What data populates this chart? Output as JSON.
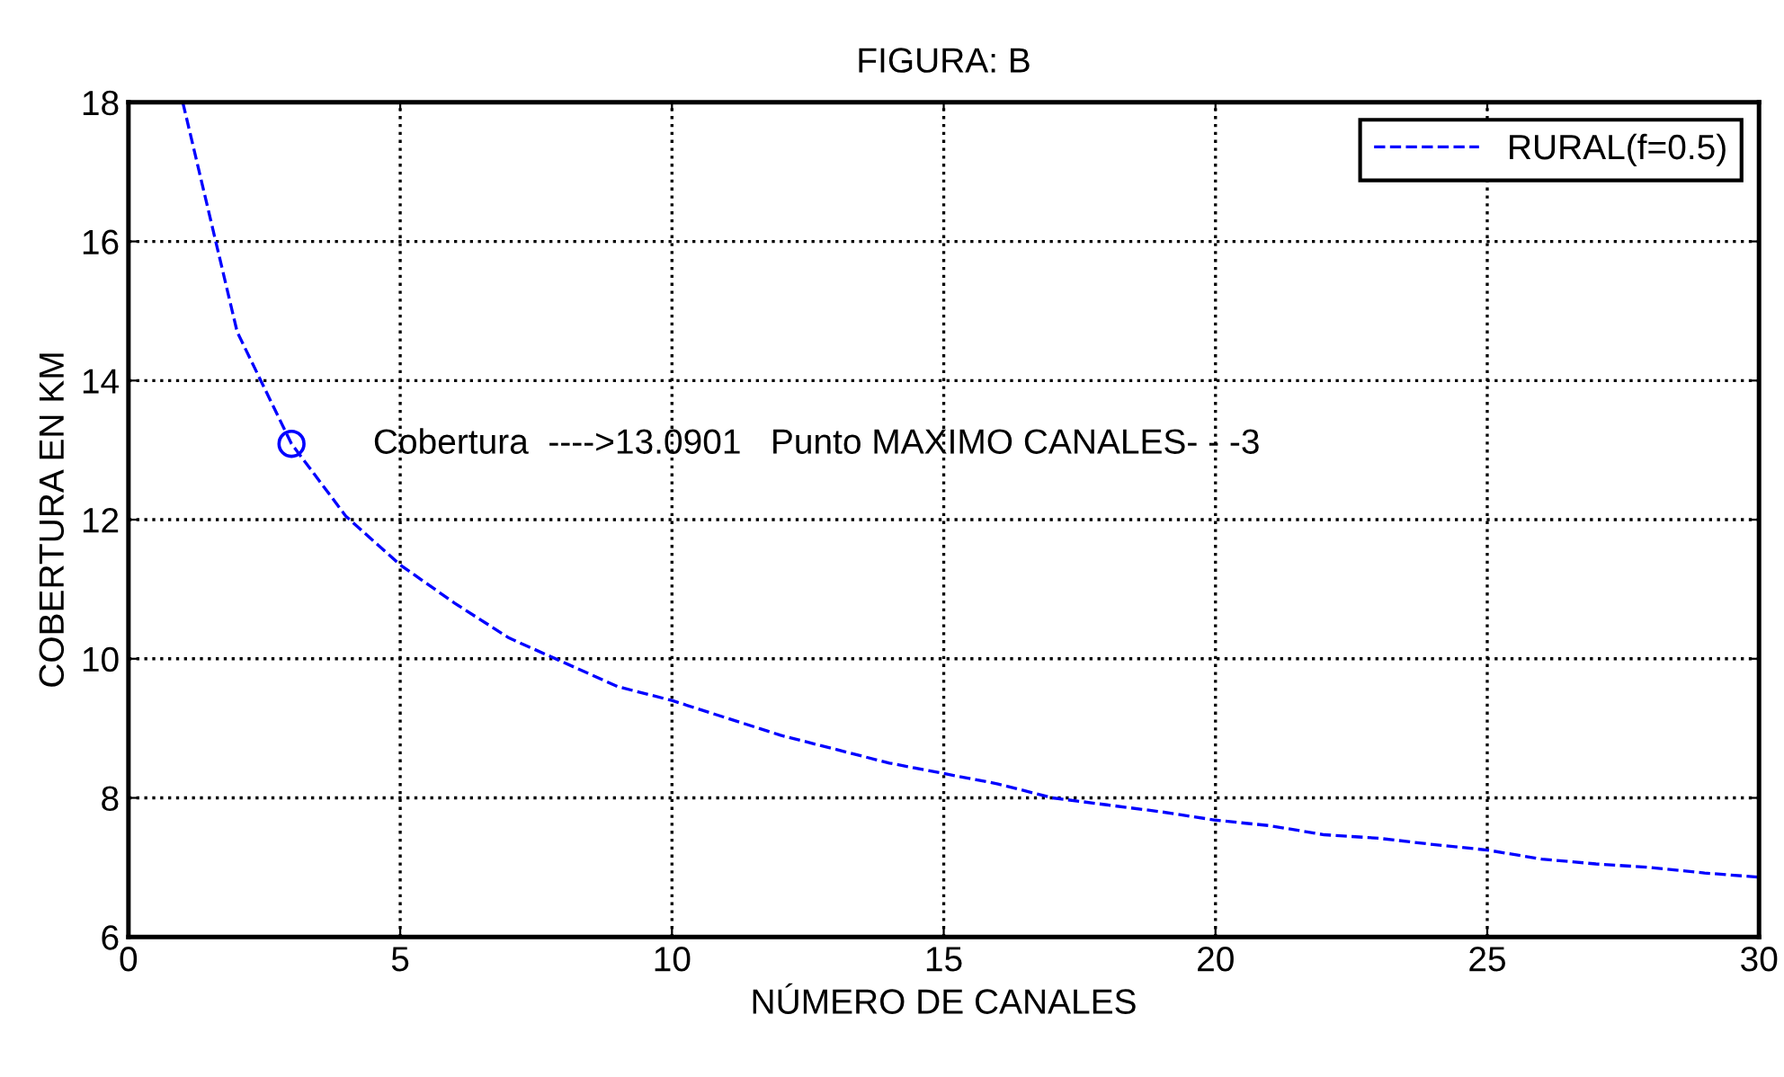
{
  "chart_data": {
    "type": "line",
    "title": "FIGURA: B",
    "xlabel": "NÚMERO DE CANALES",
    "ylabel": "COBERTURA EN KM",
    "x": [
      1,
      2,
      3,
      4,
      5,
      6,
      7,
      8,
      9,
      10,
      11,
      12,
      13,
      14,
      15,
      16,
      17,
      18,
      19,
      20,
      21,
      22,
      23,
      24,
      25,
      26,
      27,
      28,
      29,
      30
    ],
    "series": [
      {
        "name": "RURAL(f=0.5)",
        "color": "#0000ff",
        "line_style": "dashed",
        "marker": "none",
        "values": [
          18.0,
          14.7,
          13.09,
          12.05,
          11.35,
          10.8,
          10.3,
          9.95,
          9.6,
          9.4,
          9.15,
          8.9,
          8.7,
          8.5,
          8.35,
          8.2,
          8.0,
          7.9,
          7.8,
          7.68,
          7.6,
          7.47,
          7.42,
          7.33,
          7.25,
          7.12,
          7.05,
          7.0,
          6.92,
          6.86
        ]
      },
      {
        "type": "scatter",
        "color": "#0000ff",
        "marker": "circle",
        "x": [
          3
        ],
        "values": [
          13.09
        ]
      }
    ],
    "annotations": [
      "Cobertura  ---->13.0901   Punto MAXIMO CANALES- - -3"
    ],
    "xlim": [
      0,
      30
    ],
    "xticks": [
      0,
      5,
      10,
      15,
      20,
      25,
      30
    ],
    "ylim": [
      6,
      18
    ],
    "yticks": [
      6,
      8,
      10,
      12,
      14,
      16,
      18
    ],
    "grid": true,
    "legend": "top right"
  }
}
